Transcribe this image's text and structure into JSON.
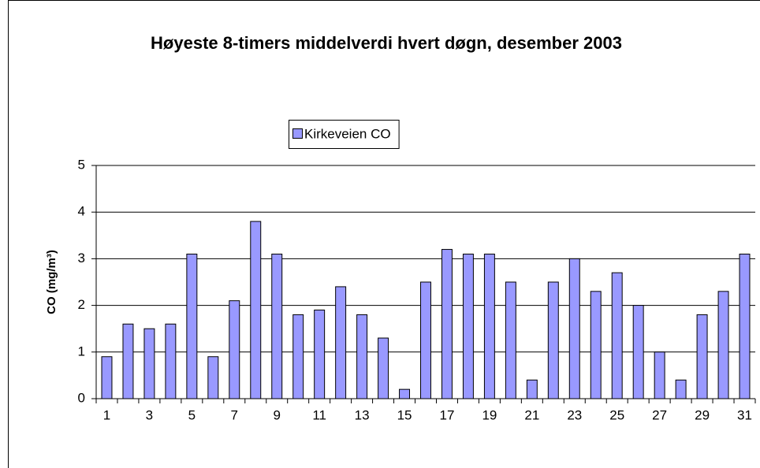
{
  "chart_data": {
    "type": "bar",
    "title": "Høyeste 8-timers middelverdi hvert døgn, desember 2003",
    "y_label": "CO (mg/m³)",
    "categories": [
      "1",
      null,
      "3",
      null,
      "5",
      null,
      "7",
      null,
      "9",
      null,
      "11",
      null,
      "13",
      null,
      "15",
      null,
      "17",
      null,
      "19",
      null,
      "21",
      null,
      "23",
      null,
      "25",
      null,
      "27",
      null,
      "29",
      null,
      "31"
    ],
    "series": [
      {
        "name": "Kirkeveien CO",
        "color": "#9999ff",
        "values": [
          0.9,
          1.6,
          1.5,
          1.6,
          3.1,
          0.9,
          2.1,
          3.8,
          3.1,
          1.8,
          1.9,
          2.4,
          1.8,
          1.3,
          0.2,
          2.5,
          3.2,
          3.1,
          3.1,
          2.5,
          0.4,
          2.5,
          3.0,
          2.3,
          2.7,
          2.0,
          1.0,
          0.4,
          1.8,
          2.3,
          3.1
        ]
      }
    ],
    "ylim": [
      0,
      5
    ],
    "yticks": [
      0,
      1,
      2,
      3,
      4,
      5
    ],
    "grid": true,
    "legend": "top"
  }
}
